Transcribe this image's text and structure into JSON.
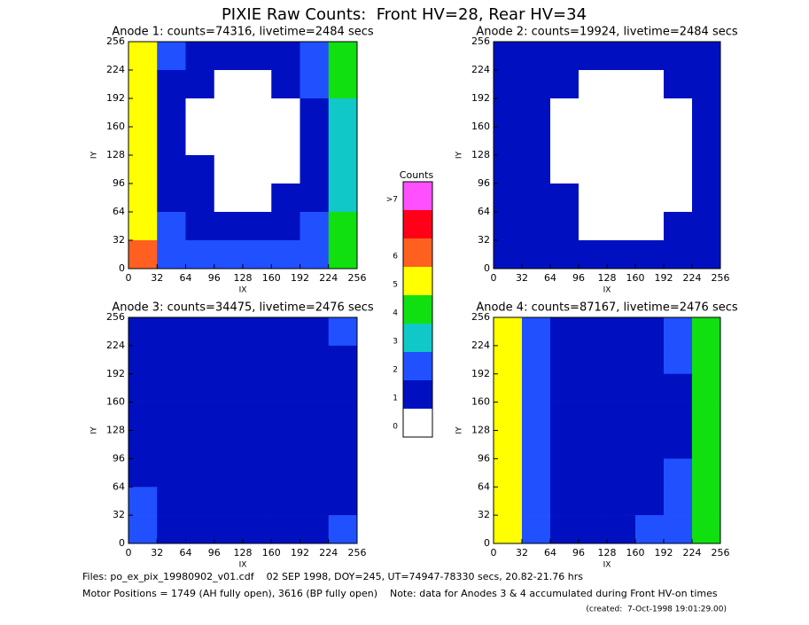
{
  "title": "PIXIE Raw Counts:  Front HV=28, Rear HV=34",
  "colorbar": {
    "title": "Counts",
    "labels": [
      "0",
      "1",
      "2",
      "3",
      "4",
      "5",
      "6",
      ">7"
    ],
    "colors": [
      "#ffffff",
      "#0010c0",
      "#2050ff",
      "#10c8c8",
      "#10e010",
      "#ffff00",
      "#ff6020",
      "#ff0018",
      "#ff50ff"
    ]
  },
  "chart_data": [
    {
      "type": "heatmap",
      "title": "Anode 1: counts=74316, livetime=2484 secs",
      "x_label": "IX",
      "y_label": "IY",
      "xlim": [
        0,
        256
      ],
      "ylim": [
        0,
        256
      ],
      "xticks": [
        0,
        32,
        64,
        96,
        128,
        160,
        192,
        224,
        256
      ],
      "yticks": [
        0,
        32,
        64,
        96,
        128,
        160,
        192,
        224,
        256
      ],
      "z": [
        [
          5,
          2,
          1,
          1,
          1,
          1,
          2,
          4
        ],
        [
          5,
          1,
          1,
          0,
          0,
          1,
          2,
          4
        ],
        [
          5,
          1,
          0,
          0,
          0,
          0,
          1,
          3
        ],
        [
          5,
          1,
          0,
          0,
          0,
          0,
          1,
          3
        ],
        [
          5,
          1,
          1,
          0,
          0,
          0,
          1,
          3
        ],
        [
          5,
          1,
          1,
          0,
          0,
          1,
          1,
          3
        ],
        [
          5,
          2,
          1,
          1,
          1,
          1,
          2,
          4
        ],
        [
          6,
          2,
          2,
          2,
          2,
          2,
          2,
          4
        ]
      ]
    },
    {
      "type": "heatmap",
      "title": "Anode 2: counts=19924, livetime=2484 secs",
      "x_label": "IX",
      "y_label": "IY",
      "xlim": [
        0,
        256
      ],
      "ylim": [
        0,
        256
      ],
      "xticks": [
        0,
        32,
        64,
        96,
        128,
        160,
        192,
        224,
        256
      ],
      "yticks": [
        0,
        32,
        64,
        96,
        128,
        160,
        192,
        224,
        256
      ],
      "z": [
        [
          1,
          1,
          1,
          1,
          1,
          1,
          1,
          1
        ],
        [
          1,
          1,
          1,
          0,
          0,
          0,
          1,
          1
        ],
        [
          1,
          1,
          0,
          0,
          0,
          0,
          0,
          1
        ],
        [
          1,
          1,
          0,
          0,
          0,
          0,
          0,
          1
        ],
        [
          1,
          1,
          0,
          0,
          0,
          0,
          0,
          1
        ],
        [
          1,
          1,
          1,
          0,
          0,
          0,
          0,
          1
        ],
        [
          1,
          1,
          1,
          0,
          0,
          0,
          1,
          1
        ],
        [
          1,
          1,
          1,
          1,
          1,
          1,
          1,
          1
        ]
      ]
    },
    {
      "type": "heatmap",
      "title": "Anode 3: counts=34475, livetime=2476 secs",
      "x_label": "IX",
      "y_label": "IY",
      "xlim": [
        0,
        256
      ],
      "ylim": [
        0,
        256
      ],
      "xticks": [
        0,
        32,
        64,
        96,
        128,
        160,
        192,
        224,
        256
      ],
      "yticks": [
        0,
        32,
        64,
        96,
        128,
        160,
        192,
        224,
        256
      ],
      "z": [
        [
          1,
          1,
          1,
          1,
          1,
          1,
          1,
          2
        ],
        [
          1,
          1,
          1,
          1,
          1,
          1,
          1,
          1
        ],
        [
          1,
          1,
          1,
          1,
          1,
          1,
          1,
          1
        ],
        [
          1,
          1,
          1,
          1,
          1,
          1,
          1,
          1
        ],
        [
          1,
          1,
          1,
          1,
          1,
          1,
          1,
          1
        ],
        [
          1,
          1,
          1,
          1,
          1,
          1,
          1,
          1
        ],
        [
          2,
          1,
          1,
          1,
          1,
          1,
          1,
          1
        ],
        [
          2,
          1,
          1,
          1,
          1,
          1,
          1,
          2
        ]
      ]
    },
    {
      "type": "heatmap",
      "title": "Anode 4: counts=87167, livetime=2476 secs",
      "x_label": "IX",
      "y_label": "IY",
      "xlim": [
        0,
        256
      ],
      "ylim": [
        0,
        256
      ],
      "xticks": [
        0,
        32,
        64,
        96,
        128,
        160,
        192,
        224,
        256
      ],
      "yticks": [
        0,
        32,
        64,
        96,
        128,
        160,
        192,
        224,
        256
      ],
      "z": [
        [
          5,
          2,
          1,
          1,
          1,
          1,
          2,
          4
        ],
        [
          5,
          2,
          1,
          1,
          1,
          1,
          2,
          4
        ],
        [
          5,
          2,
          1,
          1,
          1,
          1,
          1,
          4
        ],
        [
          5,
          2,
          1,
          1,
          1,
          1,
          1,
          4
        ],
        [
          5,
          2,
          1,
          1,
          1,
          1,
          1,
          4
        ],
        [
          5,
          2,
          1,
          1,
          1,
          1,
          2,
          4
        ],
        [
          5,
          2,
          1,
          1,
          1,
          1,
          2,
          4
        ],
        [
          5,
          2,
          1,
          1,
          1,
          2,
          2,
          4
        ]
      ]
    }
  ],
  "footer": {
    "files": "Files: po_ex_pix_19980902_v01.cdf    02 SEP 1998, DOY=245, UT=74947-78330 secs, 20.82-21.76 hrs",
    "motor": "Motor Positions = 1749 (AH fully open), 3616 (BP fully open)    Note: data for Anodes 3 & 4 accumulated during Front HV-on times",
    "created": "(created:  7-Oct-1998 19:01:29.00)"
  }
}
